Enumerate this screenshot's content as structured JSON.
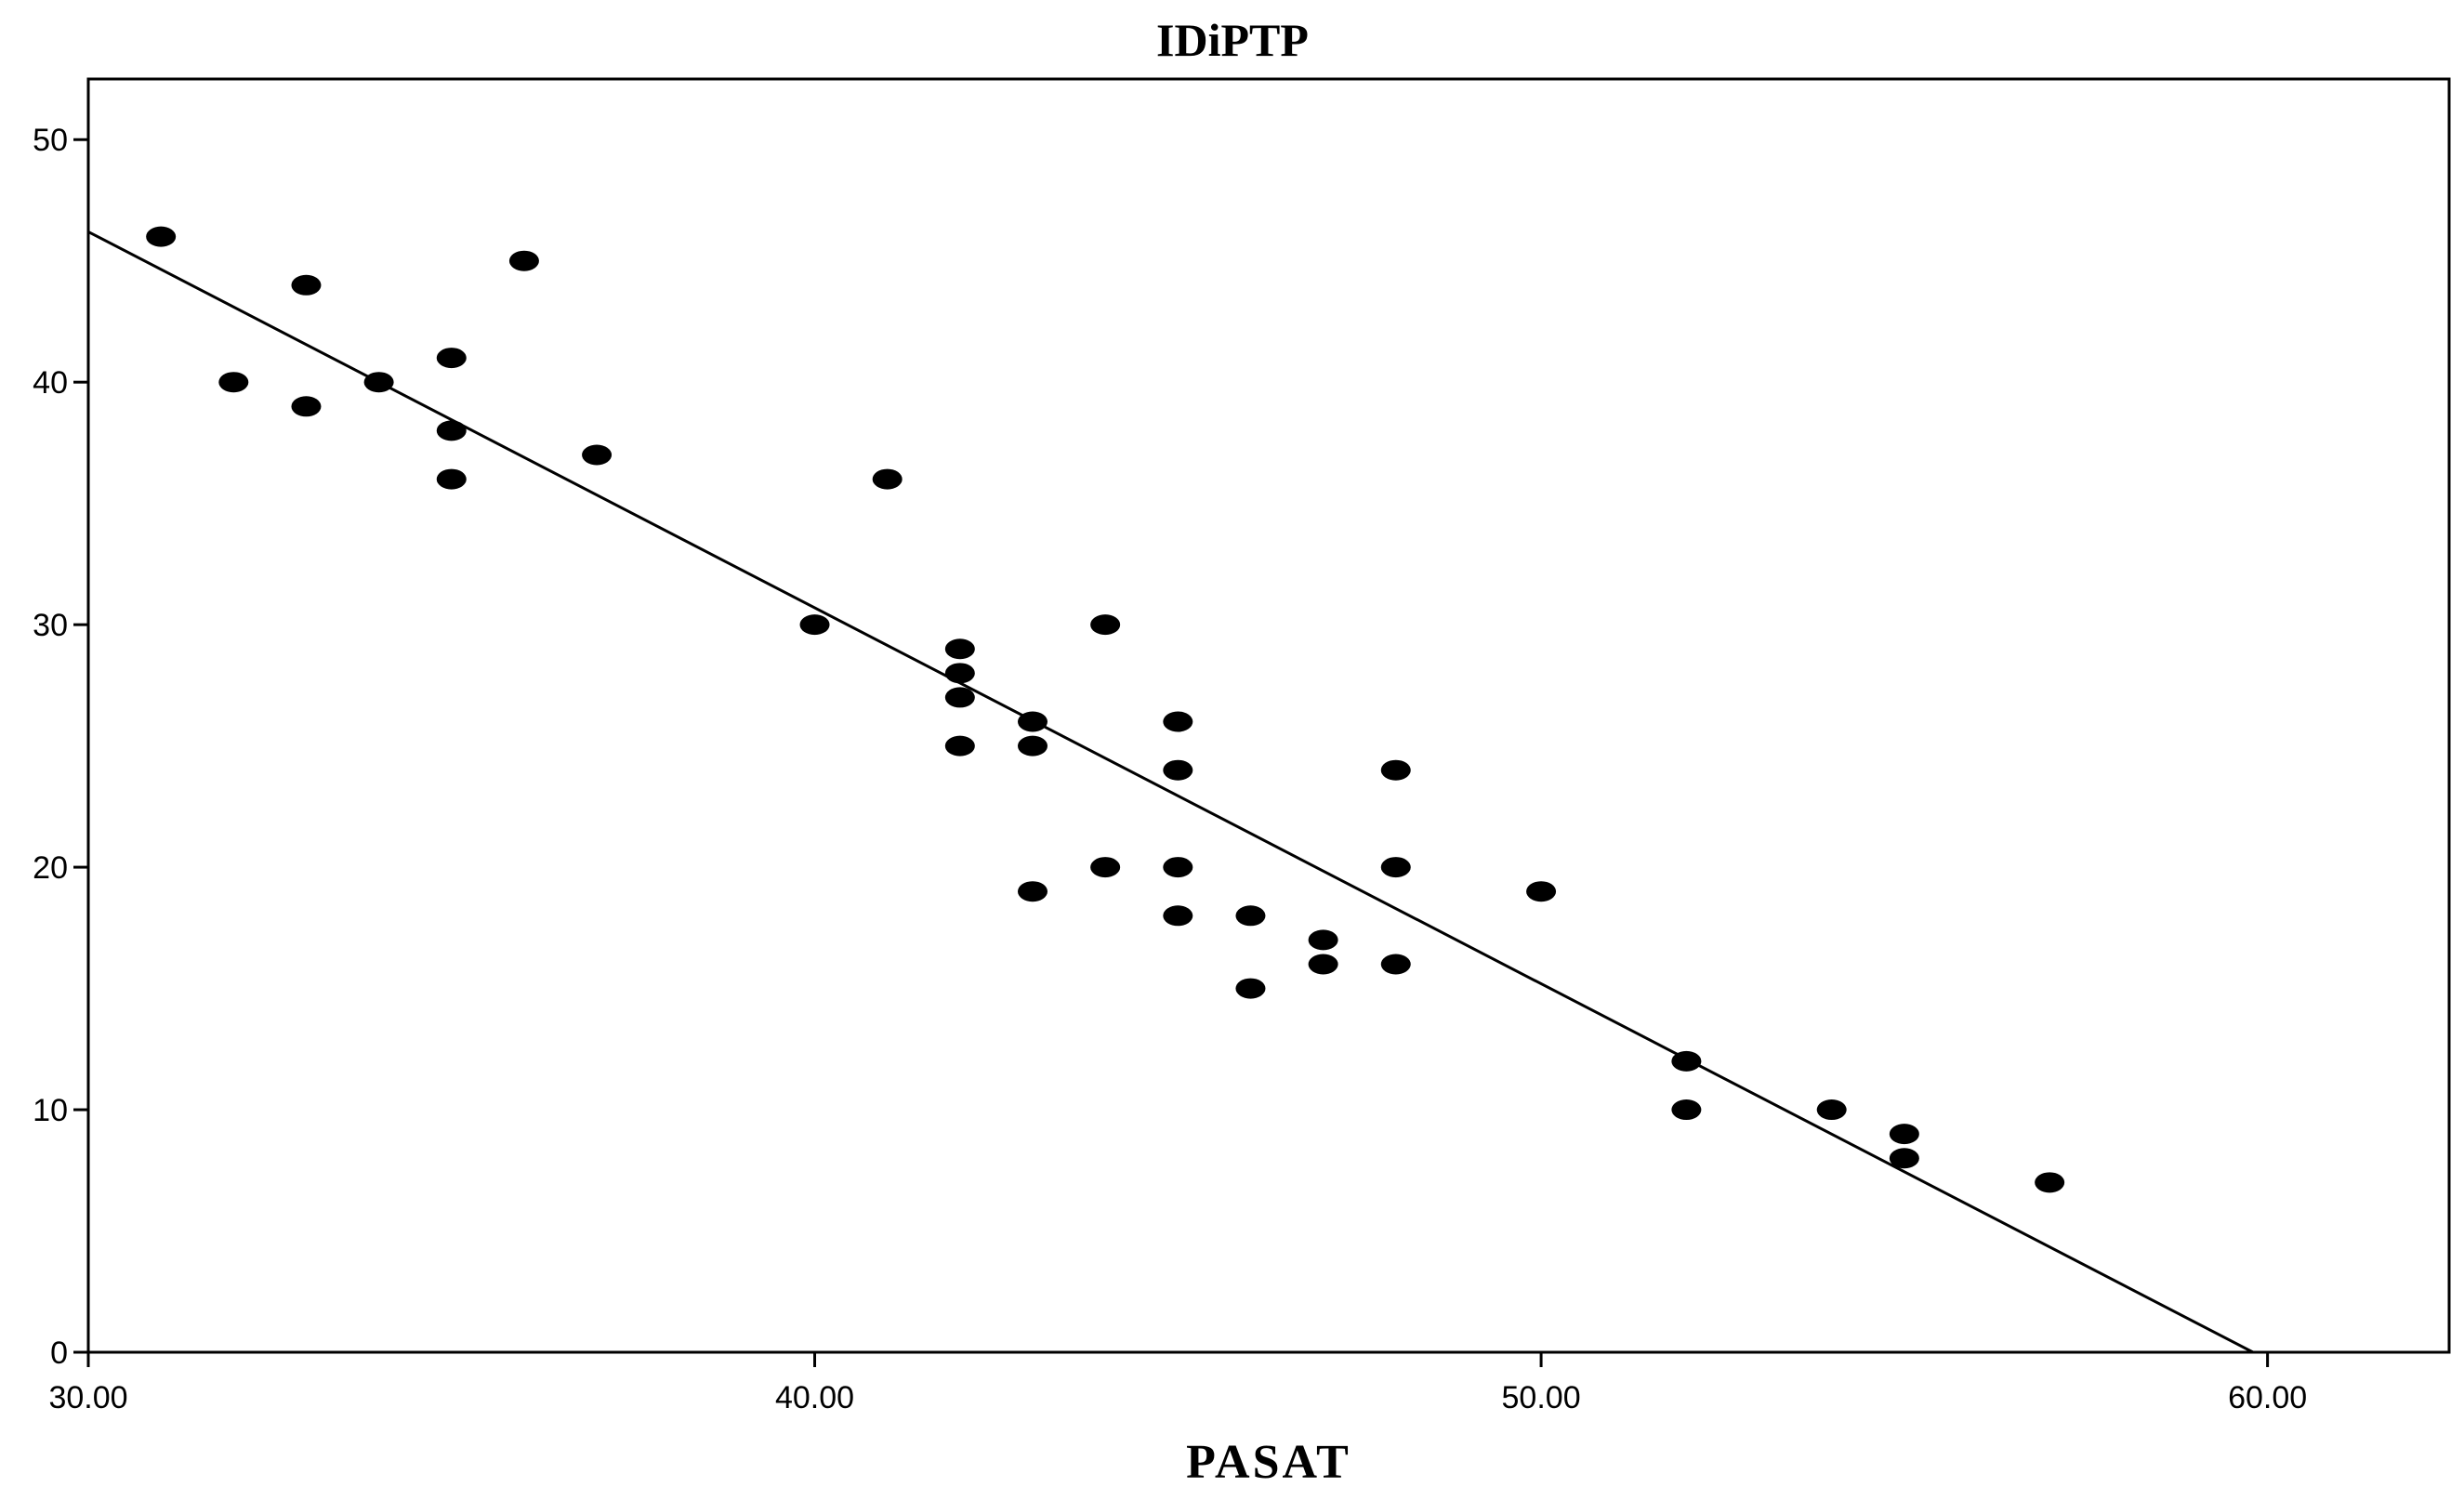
{
  "chart_data": {
    "type": "scatter",
    "title": "IDiPTP",
    "xlabel": "PASAT",
    "ylabel": "",
    "xlim": [
      30,
      62.5
    ],
    "ylim": [
      0,
      52.5
    ],
    "x_ticks": [
      "30.00",
      "40.00",
      "50.00",
      "60.00"
    ],
    "x_tick_values": [
      30,
      40,
      50,
      60
    ],
    "y_ticks": [
      "0",
      "10",
      "20",
      "30",
      "40",
      "50"
    ],
    "y_tick_values": [
      0,
      10,
      20,
      30,
      40,
      50
    ],
    "grid": false,
    "legend": "none",
    "point_color": "#000000",
    "points": [
      [
        31,
        46
      ],
      [
        32,
        40
      ],
      [
        33,
        44
      ],
      [
        33,
        39
      ],
      [
        34,
        40
      ],
      [
        35,
        41
      ],
      [
        35,
        38
      ],
      [
        35,
        36
      ],
      [
        36,
        45
      ],
      [
        37,
        37
      ],
      [
        40,
        30
      ],
      [
        41,
        36
      ],
      [
        42,
        29
      ],
      [
        42,
        28
      ],
      [
        42,
        27
      ],
      [
        42,
        25
      ],
      [
        43,
        26
      ],
      [
        43,
        25
      ],
      [
        43,
        19
      ],
      [
        44,
        30
      ],
      [
        44,
        20
      ],
      [
        45,
        26
      ],
      [
        45,
        24
      ],
      [
        45,
        20
      ],
      [
        45,
        18
      ],
      [
        46,
        18
      ],
      [
        46,
        15
      ],
      [
        47,
        17
      ],
      [
        47,
        16
      ],
      [
        48,
        24
      ],
      [
        48,
        20
      ],
      [
        48,
        16
      ],
      [
        50,
        19
      ],
      [
        52,
        12
      ],
      [
        52,
        10
      ],
      [
        54,
        10
      ],
      [
        55,
        9
      ],
      [
        55,
        8
      ],
      [
        57,
        7
      ]
    ],
    "fit_line": {
      "x": [
        30,
        59.8
      ],
      "y": [
        46.2,
        0
      ]
    }
  }
}
